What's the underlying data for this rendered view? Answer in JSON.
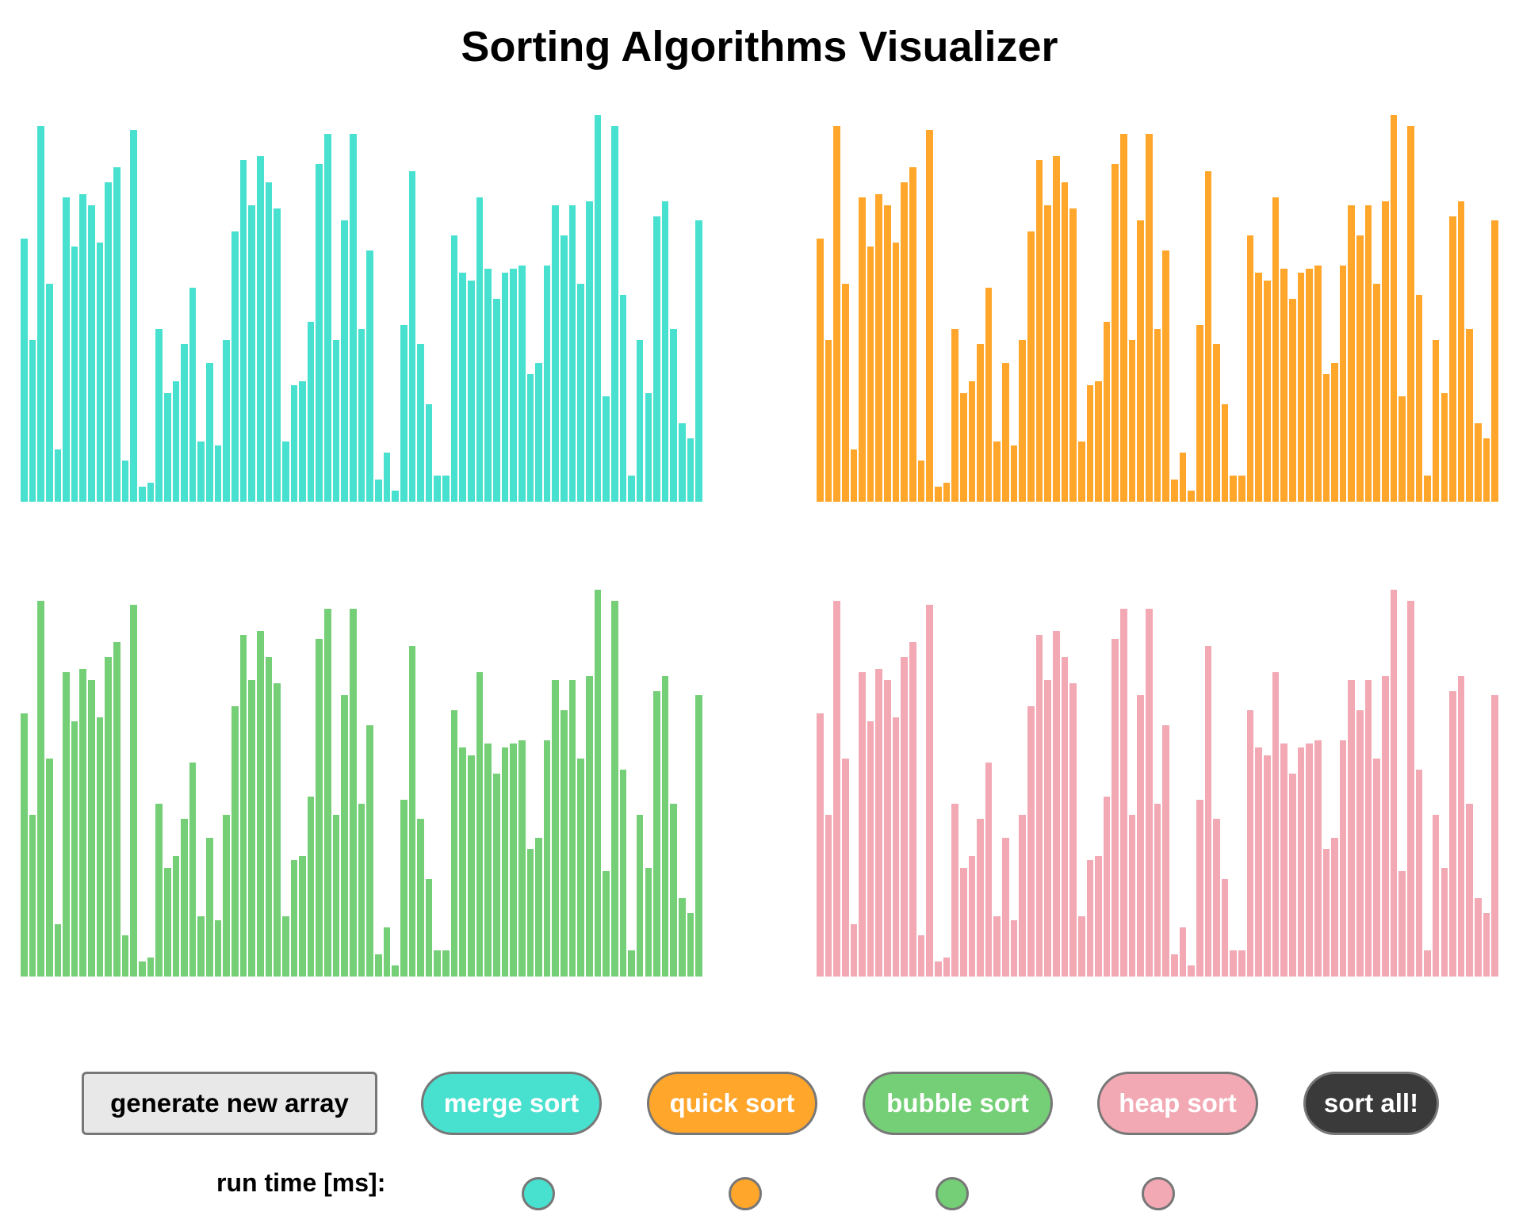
{
  "title": "Sorting Algorithms Visualizer",
  "colors": {
    "merge": "#48e0cf",
    "quick": "#ffa62b",
    "bubble": "#74cf76",
    "heap": "#f2a9b4",
    "sort_all": "#3a3a3a",
    "generate": "#e8e8e8"
  },
  "buttons": {
    "generate": "generate new array",
    "merge": "merge sort",
    "quick": "quick sort",
    "bubble": "bubble sort",
    "heap": "heap sort",
    "sort_all": "sort all!"
  },
  "runtime": {
    "label": "run time [ms]:"
  },
  "chart_data": {
    "type": "bar",
    "ylim": [
      0,
      100
    ],
    "grid": false,
    "array": [
      70,
      43,
      100,
      58,
      14,
      81,
      68,
      82,
      79,
      69,
      85,
      89,
      11,
      99,
      4,
      5,
      46,
      29,
      32,
      42,
      57,
      16,
      37,
      15,
      43,
      72,
      91,
      79,
      92,
      85,
      78,
      16,
      31,
      32,
      48,
      90,
      98,
      43,
      75,
      98,
      46,
      67,
      6,
      13,
      3,
      47,
      88,
      42,
      26,
      7,
      7,
      71,
      61,
      59,
      81,
      62,
      54,
      61,
      62,
      63,
      34,
      37,
      63,
      79,
      71,
      79,
      58,
      80,
      103,
      28,
      100,
      55,
      7,
      43,
      29,
      76,
      80,
      46,
      21,
      17,
      75
    ]
  }
}
